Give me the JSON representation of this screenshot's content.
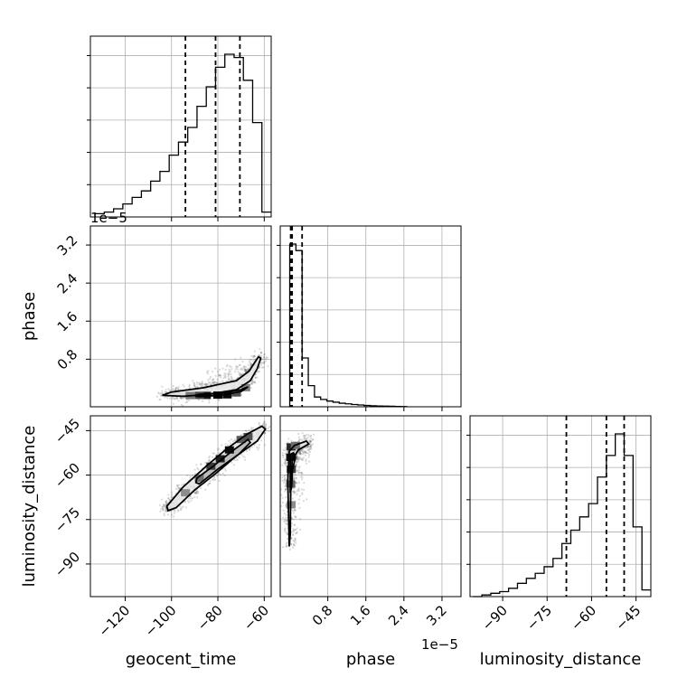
{
  "chart_data": {
    "type": "corner",
    "parameters": [
      "geocent_time",
      "phase",
      "luminosity_distance"
    ],
    "axis_labels": {
      "x": [
        "geocent_time",
        "phase",
        "luminosity_distance"
      ],
      "y": [
        "",
        "phase",
        "luminosity_distance"
      ]
    },
    "offset_texts": {
      "phase_y": "1e−5",
      "phase_x": "1e−5"
    },
    "ranges": {
      "geocent_time": [
        -135,
        -57
      ],
      "phase": [
        -2e-06,
        3.6e-05
      ],
      "luminosity_distance": [
        -101,
        -40
      ]
    },
    "ticks": {
      "geocent_time": {
        "values": [
          -120,
          -100,
          -80,
          -60
        ],
        "labels": [
          "−120",
          "−100",
          "−80",
          "−60"
        ]
      },
      "phase": {
        "values": [
          8e-06,
          1.6e-05,
          2.4e-05,
          3.2e-05
        ],
        "labels": [
          "0.8",
          "1.6",
          "2.4",
          "3.2"
        ]
      },
      "luminosity_distance": {
        "values": [
          -90,
          -75,
          -60,
          -45
        ],
        "labels": [
          "−90",
          "−75",
          "−60",
          "−45"
        ]
      }
    },
    "grid": true,
    "histograms": {
      "geocent_time": {
        "bin_edges": [
          -133,
          -129,
          -125,
          -121,
          -117,
          -113,
          -109,
          -105,
          -101,
          -97,
          -93,
          -89,
          -85,
          -81,
          -77,
          -73,
          -69,
          -65,
          -61,
          -57
        ],
        "counts": [
          0.02,
          0.03,
          0.05,
          0.08,
          0.12,
          0.16,
          0.22,
          0.28,
          0.38,
          0.46,
          0.55,
          0.68,
          0.8,
          0.92,
          1.0,
          0.98,
          0.84,
          0.58,
          0.03
        ]
      },
      "phase": {
        "bin_edges": [
          0.0,
          1.3e-06,
          2.6e-06,
          3.9e-06,
          5.2e-06,
          6.5e-06,
          7.8e-06,
          9.1e-06,
          1.04e-05,
          1.17e-05,
          1.3e-05,
          1.43e-05,
          1.56e-05,
          1.69e-05,
          1.82e-05,
          1.95e-05,
          2.08e-05,
          2.21e-05,
          2.34e-05,
          2.47e-05
        ],
        "counts": [
          1.0,
          0.96,
          0.3,
          0.13,
          0.06,
          0.045,
          0.035,
          0.028,
          0.022,
          0.018,
          0.014,
          0.011,
          0.008,
          0.006,
          0.005,
          0.004,
          0.003,
          0.002,
          0.001
        ]
      },
      "luminosity_distance": {
        "bin_edges": [
          -100,
          -97,
          -94,
          -91,
          -88,
          -85,
          -82,
          -79,
          -76,
          -73,
          -70,
          -67,
          -64,
          -61,
          -58,
          -55,
          -52,
          -49,
          -46,
          -43,
          -40
        ],
        "counts": [
          0.0,
          0.01,
          0.02,
          0.03,
          0.05,
          0.08,
          0.11,
          0.14,
          0.18,
          0.23,
          0.32,
          0.4,
          0.48,
          0.56,
          0.72,
          0.85,
          0.98,
          0.85,
          0.42,
          0.04
        ]
      }
    },
    "quantiles": {
      "geocent_time": [
        -94,
        -81,
        -70.5
      ],
      "phase": [
        2e-07,
        5e-07,
        2.6e-06
      ],
      "luminosity_distance": [
        -68.5,
        -55,
        -49
      ]
    },
    "contours": {
      "phase_vs_geocent_time": [
        [
          [
            -95,
            2e-07
          ],
          [
            -84,
            6e-07
          ],
          [
            -72,
            1.6e-06
          ],
          [
            -66,
            3.5e-06
          ],
          [
            -63,
            6e-06
          ],
          [
            -61.5,
            8.2e-06
          ],
          [
            -62.5,
            8.5e-06
          ],
          [
            -66.5,
            5.5e-06
          ],
          [
            -72,
            3.5e-06
          ],
          [
            -86,
            2e-06
          ],
          [
            -100,
            1.1e-06
          ],
          [
            -104,
            4e-07
          ],
          [
            -95,
            2e-07
          ]
        ],
        [
          [
            -88,
            1.5e-07
          ],
          [
            -78,
            4.5e-07
          ],
          [
            -70,
            1.2e-06
          ],
          [
            -67,
            2.2e-06
          ],
          [
            -70,
            1.6e-06
          ],
          [
            -78,
            9e-07
          ],
          [
            -88,
            6e-07
          ],
          [
            -90,
            3e-07
          ],
          [
            -88,
            1.5e-07
          ]
        ]
      ],
      "luminosity_distance_vs_geocent_time": [
        [
          [
            -102,
            -70.5
          ],
          [
            -95,
            -64
          ],
          [
            -85,
            -57
          ],
          [
            -76,
            -51
          ],
          [
            -67,
            -46
          ],
          [
            -61,
            -43.5
          ],
          [
            -59.5,
            -44.5
          ],
          [
            -63,
            -48.5
          ],
          [
            -72,
            -53.5
          ],
          [
            -81,
            -59.5
          ],
          [
            -90,
            -65
          ],
          [
            -98,
            -71
          ],
          [
            -101.5,
            -72
          ],
          [
            -102,
            -70.5
          ]
        ],
        [
          [
            -89,
            -61
          ],
          [
            -82,
            -57
          ],
          [
            -74,
            -52
          ],
          [
            -67,
            -48
          ],
          [
            -66,
            -49
          ],
          [
            -71,
            -53
          ],
          [
            -80,
            -58
          ],
          [
            -88,
            -63
          ],
          [
            -89.5,
            -62.5
          ],
          [
            -89,
            -61
          ]
        ]
      ],
      "luminosity_distance_vs_phase": [
        [
          [
            -1e-07,
            -52
          ],
          [
            1e-06,
            -50
          ],
          [
            3.5e-06,
            -48.5
          ],
          [
            4e-06,
            -49.5
          ],
          [
            1.8e-06,
            -51.5
          ],
          [
            5e-07,
            -55
          ],
          [
            2e-07,
            -65
          ],
          [
            1e-07,
            -80
          ],
          [
            -1e-07,
            -84
          ],
          [
            -4e-07,
            -62
          ],
          [
            -1e-07,
            -52
          ]
        ],
        [
          [
            1e-07,
            -53
          ],
          [
            8e-07,
            -52.5
          ],
          [
            1.2e-06,
            -54
          ],
          [
            6e-07,
            -58
          ],
          [
            4e-07,
            -64
          ],
          [
            1e-07,
            -66
          ],
          [
            1e-07,
            -53
          ]
        ]
      ]
    },
    "density_blobs": {
      "phase_vs_geocent_time": [
        [
          -85,
          4e-07,
          0.9
        ],
        [
          -80,
          4.5e-07,
          1.0
        ],
        [
          -76,
          5e-07,
          0.95
        ],
        [
          -88,
          4e-07,
          0.65
        ],
        [
          -72,
          9e-07,
          0.6
        ],
        [
          -92,
          3.5e-07,
          0.4
        ],
        [
          -68,
          2e-06,
          0.35
        ]
      ],
      "luminosity_distance_vs_geocent_time": [
        [
          -75,
          -51.5,
          0.95
        ],
        [
          -79,
          -54.5,
          0.85
        ],
        [
          -83,
          -57,
          0.7
        ],
        [
          -70,
          -48,
          0.55
        ],
        [
          -88,
          -61,
          0.45
        ],
        [
          -94,
          -66,
          0.3
        ],
        [
          -67,
          -47,
          0.6
        ]
      ],
      "luminosity_distance_vs_phase": [
        [
          2e-07,
          -54,
          0.95
        ],
        [
          3e-07,
          -58,
          0.7
        ],
        [
          2e-07,
          -63,
          0.5
        ],
        [
          3e-07,
          -50.5,
          0.8
        ],
        [
          1.2e-06,
          -50,
          0.45
        ],
        [
          3e-07,
          -70,
          0.3
        ]
      ]
    }
  }
}
